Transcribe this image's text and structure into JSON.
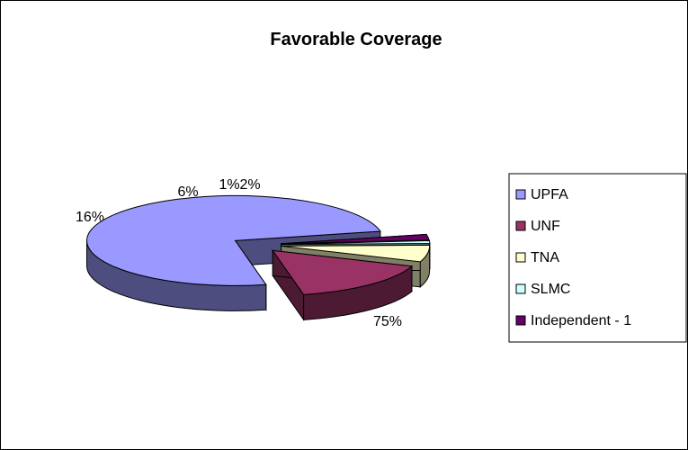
{
  "chart_data": {
    "type": "pie",
    "style": "3d-exploded",
    "title": "Favorable Coverage",
    "categories": [
      "UPFA",
      "UNF",
      "TNA",
      "SLMC",
      "Independent - 1"
    ],
    "values": [
      75,
      16,
      6,
      1,
      2
    ],
    "data_labels": [
      "75%",
      "16%",
      "6%",
      "1%",
      "2%"
    ],
    "colors": [
      "#9999FF",
      "#993366",
      "#FFFFCC",
      "#CCFFFF",
      "#660066"
    ],
    "legend_position": "right"
  }
}
